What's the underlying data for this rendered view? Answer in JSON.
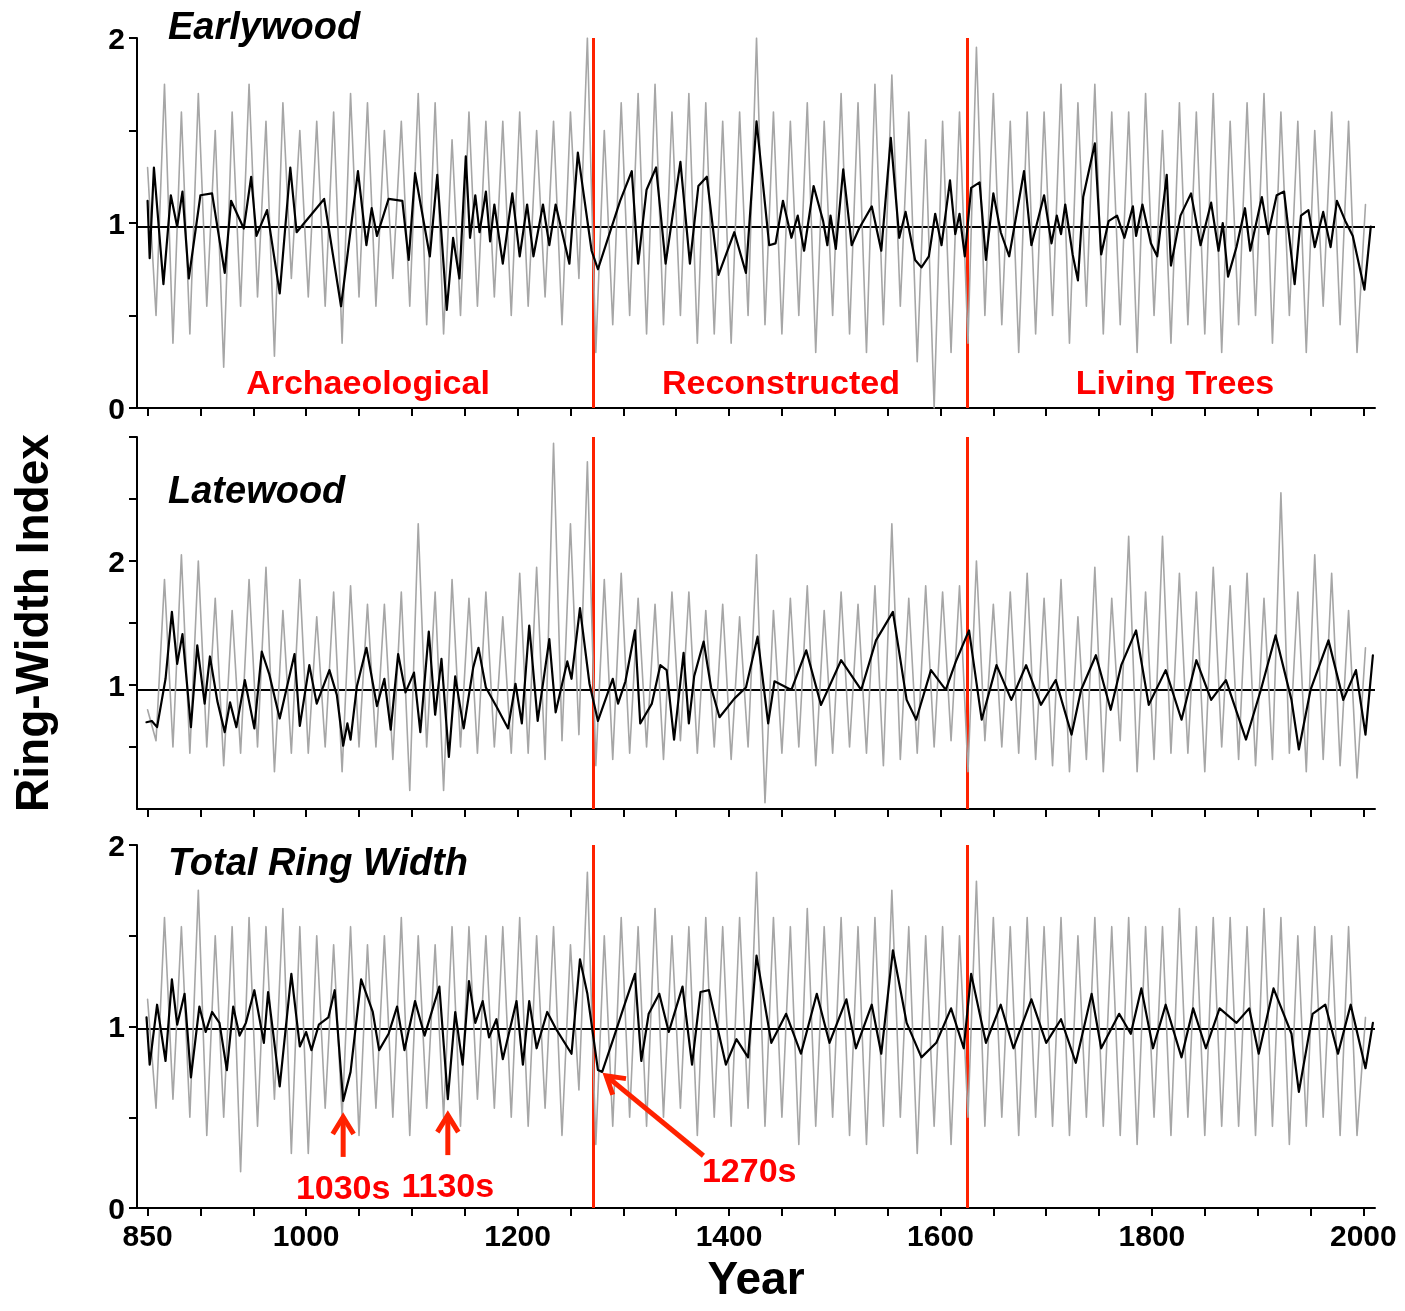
{
  "chart_data": [
    {
      "type": "line",
      "title": "Earlywood",
      "x": [
        850,
        858,
        866,
        874,
        882,
        890,
        898,
        906,
        914,
        922,
        930,
        938,
        946,
        954,
        962,
        970,
        978,
        986,
        994,
        1002,
        1010,
        1018,
        1026,
        1034,
        1042,
        1050,
        1058,
        1066,
        1074,
        1082,
        1090,
        1098,
        1106,
        1114,
        1122,
        1130,
        1138,
        1146,
        1154,
        1162,
        1170,
        1178,
        1186,
        1194,
        1202,
        1210,
        1218,
        1226,
        1234,
        1242,
        1250,
        1258,
        1266,
        1274,
        1282,
        1290,
        1298,
        1306,
        1314,
        1322,
        1330,
        1338,
        1346,
        1354,
        1362,
        1370,
        1378,
        1386,
        1394,
        1402,
        1410,
        1418,
        1426,
        1434,
        1442,
        1450,
        1458,
        1466,
        1474,
        1482,
        1490,
        1498,
        1506,
        1514,
        1522,
        1530,
        1538,
        1546,
        1554,
        1562,
        1570,
        1578,
        1586,
        1594,
        1602,
        1610,
        1618,
        1626,
        1634,
        1642,
        1650,
        1658,
        1666,
        1674,
        1682,
        1690,
        1698,
        1706,
        1714,
        1722,
        1730,
        1738,
        1746,
        1754,
        1762,
        1770,
        1778,
        1786,
        1794,
        1802,
        1810,
        1818,
        1826,
        1834,
        1842,
        1850,
        1858,
        1866,
        1874,
        1882,
        1890,
        1898,
        1906,
        1914,
        1922,
        1930,
        1938,
        1946,
        1954,
        1962,
        1970,
        1978,
        1986,
        1994,
        2002
      ],
      "series": [
        {
          "color": "#a6a6a6",
          "values": [
            1.3,
            0.5,
            1.75,
            0.35,
            1.6,
            0.4,
            1.7,
            0.55,
            1.5,
            0.22,
            1.6,
            0.55,
            1.75,
            0.6,
            1.55,
            0.28,
            1.65,
            0.7,
            1.5,
            0.6,
            1.55,
            0.55,
            1.6,
            0.35,
            1.7,
            0.6,
            1.65,
            0.55,
            1.5,
            0.7,
            1.55,
            0.55,
            1.7,
            0.45,
            1.65,
            0.4,
            1.45,
            0.5,
            1.6,
            0.55,
            1.55,
            0.6,
            1.55,
            0.5,
            1.6,
            0.55,
            1.5,
            0.6,
            1.55,
            0.45,
            1.6,
            0.7,
            2.0,
            0.3,
            1.5,
            0.45,
            1.65,
            0.5,
            1.7,
            0.4,
            1.75,
            0.45,
            1.6,
            0.5,
            1.7,
            0.35,
            1.65,
            0.4,
            1.55,
            0.35,
            1.6,
            0.5,
            2.0,
            0.45,
            1.6,
            0.4,
            1.55,
            0.5,
            1.65,
            0.3,
            1.55,
            0.5,
            1.7,
            0.4,
            1.65,
            0.3,
            1.75,
            0.45,
            1.8,
            0.55,
            1.6,
            0.25,
            1.45,
            0.0,
            1.55,
            0.3,
            1.6,
            0.35,
            1.95,
            0.5,
            1.7,
            0.45,
            1.55,
            0.3,
            1.6,
            0.4,
            1.6,
            0.5,
            1.75,
            0.35,
            1.65,
            0.55,
            1.75,
            0.4,
            1.6,
            0.45,
            1.6,
            0.3,
            1.7,
            0.5,
            1.5,
            0.35,
            1.65,
            0.45,
            1.6,
            0.4,
            1.7,
            0.3,
            1.55,
            0.45,
            1.65,
            0.5,
            1.7,
            0.35,
            1.6,
            0.5,
            1.55,
            0.3,
            1.5,
            0.55,
            1.6,
            0.45,
            1.55,
            0.3,
            1.1
          ]
        },
        {
          "color": "#000000",
          "x": [
            850,
            852,
            856,
            865,
            872,
            878,
            883,
            889,
            900,
            911,
            923,
            929,
            941,
            948,
            953,
            963,
            975,
            985,
            991,
            1017,
            1033,
            1049,
            1057,
            1062,
            1067,
            1078,
            1091,
            1097,
            1103,
            1117,
            1124,
            1133,
            1139,
            1145,
            1151,
            1155,
            1160,
            1164,
            1170,
            1174,
            1178,
            1186,
            1195,
            1202,
            1209,
            1215,
            1224,
            1230,
            1236,
            1249,
            1257,
            1270,
            1276,
            1297,
            1308,
            1314,
            1322,
            1331,
            1340,
            1354,
            1363,
            1371,
            1379,
            1390,
            1405,
            1416,
            1426,
            1438,
            1444,
            1451,
            1459,
            1465,
            1471,
            1480,
            1489,
            1493,
            1496,
            1501,
            1508,
            1516,
            1523,
            1535,
            1544,
            1553,
            1561,
            1567,
            1576,
            1582,
            1589,
            1595,
            1601,
            1609,
            1614,
            1618,
            1623,
            1629,
            1637,
            1643,
            1650,
            1657,
            1665,
            1679,
            1686,
            1698,
            1705,
            1710,
            1714,
            1718,
            1725,
            1730,
            1735,
            1746,
            1752,
            1759,
            1767,
            1774,
            1782,
            1785,
            1791,
            1799,
            1805,
            1814,
            1818,
            1827,
            1837,
            1846,
            1856,
            1863,
            1867,
            1872,
            1880,
            1888,
            1893,
            1904,
            1910,
            1918,
            1925,
            1935,
            1941,
            1948,
            1954,
            1962,
            1969,
            1975,
            1983,
            1990,
            2001,
            2007
          ],
          "values": [
            1.12,
            0.81,
            1.3,
            0.67,
            1.15,
            0.98,
            1.17,
            0.7,
            1.15,
            1.16,
            0.73,
            1.12,
            0.97,
            1.25,
            0.93,
            1.07,
            0.62,
            1.3,
            0.95,
            1.13,
            0.55,
            1.28,
            0.88,
            1.08,
            0.93,
            1.13,
            1.12,
            0.8,
            1.27,
            0.82,
            1.26,
            0.53,
            0.92,
            0.7,
            1.36,
            0.92,
            1.15,
            0.95,
            1.17,
            0.9,
            1.1,
            0.78,
            1.16,
            0.82,
            1.1,
            0.82,
            1.1,
            0.88,
            1.1,
            0.78,
            1.38,
            0.85,
            0.75,
            1.12,
            1.28,
            0.78,
            1.18,
            1.3,
            0.78,
            1.33,
            0.78,
            1.2,
            1.25,
            0.72,
            0.95,
            0.73,
            1.55,
            0.88,
            0.89,
            1.12,
            0.92,
            1.04,
            0.85,
            1.2,
            1.01,
            0.88,
            1.04,
            0.86,
            1.29,
            0.88,
            0.97,
            1.09,
            0.85,
            1.46,
            0.92,
            1.06,
            0.8,
            0.76,
            0.82,
            1.05,
            0.88,
            1.23,
            0.94,
            1.05,
            0.82,
            1.19,
            1.22,
            0.8,
            1.16,
            0.95,
            0.82,
            1.28,
            0.88,
            1.15,
            0.89,
            1.04,
            0.94,
            1.1,
            0.83,
            0.69,
            1.14,
            1.43,
            0.83,
            1.01,
            1.04,
            0.92,
            1.09,
            0.93,
            1.1,
            0.89,
            0.82,
            1.26,
            0.77,
            1.04,
            1.16,
            0.88,
            1.11,
            0.85,
            1.0,
            0.71,
            0.87,
            1.08,
            0.85,
            1.14,
            0.94,
            1.15,
            1.17,
            0.67,
            1.04,
            1.07,
            0.87,
            1.06,
            0.87,
            1.12,
            1.01,
            0.93,
            0.64,
            0.98
          ]
        }
      ],
      "xlim": [
        840,
        2011
      ],
      "xticks": [
        850,
        {
          "value": 900,
          "label": null
        },
        {
          "value": 950,
          "label": null
        },
        1000,
        {
          "value": 1050,
          "label": null
        },
        {
          "value": 1100,
          "label": null
        },
        {
          "value": 1150,
          "label": null
        },
        1200,
        {
          "value": 1250,
          "label": null
        },
        {
          "value": 1300,
          "label": null
        },
        {
          "value": 1350,
          "label": null
        },
        1400,
        {
          "value": 1450,
          "label": null
        },
        {
          "value": 1500,
          "label": null
        },
        {
          "value": 1550,
          "label": null
        },
        1600,
        {
          "value": 1650,
          "label": null
        },
        {
          "value": 1700,
          "label": null
        },
        {
          "value": 1750,
          "label": null
        },
        1800,
        {
          "value": 1850,
          "label": null
        },
        {
          "value": 1900,
          "label": null
        },
        {
          "value": 1950,
          "label": null
        },
        2000
      ],
      "ylim": [
        0,
        2
      ],
      "yticks": [
        0,
        {
          "value": 0.5,
          "label": null
        },
        1,
        {
          "value": 1.5,
          "label": null
        },
        2
      ],
      "tick_labels": "y",
      "ref_lines": [
        {
          "axis": "y",
          "value": 0.98,
          "color": "#000000"
        },
        {
          "axis": "x",
          "value": 1272,
          "color": "#ff2200"
        },
        {
          "axis": "x",
          "value": 1625,
          "color": "#ff2200"
        }
      ],
      "annotations": [
        "Archaeological",
        "Reconstructed",
        "Living Trees"
      ]
    },
    {
      "type": "line",
      "title": "Latewood",
      "ylabel": "Ring-Width Index",
      "x": [
        850,
        858,
        866,
        874,
        882,
        890,
        898,
        906,
        914,
        922,
        930,
        938,
        946,
        954,
        962,
        970,
        978,
        986,
        994,
        1002,
        1010,
        1018,
        1026,
        1034,
        1042,
        1050,
        1058,
        1066,
        1074,
        1082,
        1090,
        1098,
        1106,
        1114,
        1122,
        1130,
        1138,
        1146,
        1154,
        1162,
        1170,
        1178,
        1186,
        1194,
        1202,
        1210,
        1218,
        1226,
        1234,
        1242,
        1250,
        1258,
        1266,
        1274,
        1282,
        1290,
        1298,
        1306,
        1314,
        1322,
        1330,
        1338,
        1346,
        1354,
        1362,
        1370,
        1378,
        1386,
        1394,
        1402,
        1410,
        1418,
        1426,
        1434,
        1442,
        1450,
        1458,
        1466,
        1474,
        1482,
        1490,
        1498,
        1506,
        1514,
        1522,
        1530,
        1538,
        1546,
        1554,
        1562,
        1570,
        1578,
        1586,
        1594,
        1602,
        1610,
        1618,
        1626,
        1634,
        1642,
        1650,
        1658,
        1666,
        1674,
        1682,
        1690,
        1698,
        1706,
        1714,
        1722,
        1730,
        1738,
        1746,
        1754,
        1762,
        1770,
        1778,
        1786,
        1794,
        1802,
        1810,
        1818,
        1826,
        1834,
        1842,
        1850,
        1858,
        1866,
        1874,
        1882,
        1890,
        1898,
        1906,
        1914,
        1922,
        1930,
        1938,
        1946,
        1954,
        1962,
        1970,
        1978,
        1986,
        1994,
        2002
      ],
      "series": [
        {
          "color": "#a6a6a6",
          "values": [
            0.8,
            0.55,
            1.85,
            0.5,
            2.05,
            0.45,
            2.0,
            0.5,
            1.7,
            0.35,
            1.6,
            0.45,
            1.85,
            0.5,
            1.95,
            0.3,
            1.6,
            0.45,
            1.85,
            0.45,
            1.55,
            0.5,
            1.75,
            0.3,
            1.8,
            0.5,
            1.65,
            0.5,
            1.65,
            0.4,
            1.75,
            0.15,
            2.3,
            0.5,
            1.75,
            0.15,
            1.85,
            0.5,
            1.7,
            0.45,
            1.75,
            0.5,
            1.55,
            0.45,
            1.9,
            0.45,
            1.95,
            0.4,
            2.95,
            0.55,
            2.3,
            0.6,
            2.8,
            0.35,
            1.85,
            0.4,
            1.9,
            0.45,
            1.7,
            0.5,
            1.65,
            0.4,
            1.75,
            0.55,
            1.75,
            0.45,
            1.6,
            0.5,
            1.65,
            0.4,
            1.55,
            0.5,
            2.05,
            0.05,
            1.6,
            0.45,
            1.7,
            0.5,
            1.8,
            0.35,
            1.6,
            0.45,
            1.75,
            0.5,
            1.65,
            0.45,
            1.8,
            0.35,
            2.3,
            0.4,
            1.7,
            0.45,
            1.8,
            0.5,
            1.75,
            0.55,
            1.8,
            0.3,
            2.0,
            0.55,
            1.65,
            0.5,
            1.75,
            0.45,
            1.9,
            0.4,
            1.7,
            0.35,
            1.85,
            0.3,
            1.55,
            0.4,
            1.95,
            0.3,
            1.7,
            0.55,
            2.2,
            0.3,
            1.75,
            0.4,
            2.2,
            0.45,
            1.9,
            0.45,
            1.75,
            0.3,
            1.95,
            0.5,
            1.8,
            0.4,
            1.9,
            0.35,
            1.7,
            0.4,
            2.55,
            0.45,
            1.75,
            0.3,
            2.05,
            0.4,
            1.9,
            0.35,
            1.6,
            0.25,
            1.3
          ]
        },
        {
          "color": "#000000",
          "x": [
            849,
            854,
            859,
            867,
            873,
            878,
            883,
            891,
            897,
            904,
            909,
            916,
            923,
            928,
            934,
            942,
            951,
            958,
            965,
            975,
            989,
            994,
            1003,
            1010,
            1022,
            1029,
            1035,
            1039,
            1042,
            1048,
            1057,
            1067,
            1074,
            1080,
            1087,
            1094,
            1102,
            1108,
            1116,
            1122,
            1128,
            1135,
            1141,
            1149,
            1158,
            1163,
            1170,
            1181,
            1191,
            1198,
            1204,
            1211,
            1219,
            1230,
            1236,
            1247,
            1251,
            1259,
            1268,
            1276,
            1290,
            1295,
            1302,
            1311,
            1316,
            1327,
            1335,
            1341,
            1348,
            1357,
            1362,
            1367,
            1376,
            1383,
            1391,
            1405,
            1416,
            1427,
            1437,
            1443,
            1459,
            1473,
            1487,
            1506,
            1525,
            1539,
            1555,
            1568,
            1577,
            1591,
            1605,
            1615,
            1627,
            1639,
            1653,
            1667,
            1681,
            1695,
            1709,
            1724,
            1733,
            1747,
            1761,
            1771,
            1785,
            1797,
            1813,
            1828,
            1842,
            1856,
            1870,
            1889,
            1903,
            1917,
            1932,
            1939,
            1950,
            1967,
            1981,
            1993,
            2002,
            2009
          ],
          "values": [
            0.7,
            0.71,
            0.66,
            1.05,
            1.59,
            1.17,
            1.41,
            0.66,
            1.32,
            0.85,
            1.23,
            0.87,
            0.62,
            0.86,
            0.66,
            1.04,
            0.65,
            1.27,
            1.09,
            0.73,
            1.25,
            0.67,
            1.16,
            0.85,
            1.12,
            0.92,
            0.51,
            0.69,
            0.56,
            0.99,
            1.3,
            0.83,
            1.05,
            0.64,
            1.25,
            0.94,
            1.1,
            0.62,
            1.43,
            0.76,
            1.21,
            0.42,
            1.07,
            0.65,
            1.14,
            1.3,
            0.98,
            0.81,
            0.65,
            1.01,
            0.69,
            1.48,
            0.71,
            1.37,
            0.78,
            1.19,
            1.05,
            1.62,
            1.01,
            0.71,
            1.05,
            0.85,
            1.03,
            1.44,
            0.69,
            0.85,
            1.16,
            1.12,
            0.56,
            1.26,
            0.69,
            1.07,
            1.35,
            0.98,
            0.74,
            0.89,
            0.98,
            1.39,
            0.69,
            1.03,
            0.96,
            1.28,
            0.84,
            1.2,
            0.96,
            1.36,
            1.59,
            0.88,
            0.72,
            1.12,
            0.96,
            1.2,
            1.44,
            0.72,
            1.16,
            0.88,
            1.16,
            0.84,
            1.04,
            0.6,
            0.96,
            1.24,
            0.8,
            1.16,
            1.44,
            0.84,
            1.12,
            0.72,
            1.2,
            0.88,
            1.04,
            0.56,
            0.96,
            1.4,
            0.88,
            0.48,
            0.96,
            1.36,
            0.88,
            1.12,
            0.6,
            1.24
          ]
        }
      ],
      "xlim": [
        840,
        2011
      ],
      "xticks": [
        850,
        {
          "value": 900,
          "label": null
        },
        {
          "value": 950,
          "label": null
        },
        1000,
        {
          "value": 1050,
          "label": null
        },
        {
          "value": 1100,
          "label": null
        },
        {
          "value": 1150,
          "label": null
        },
        1200,
        {
          "value": 1250,
          "label": null
        },
        {
          "value": 1300,
          "label": null
        },
        {
          "value": 1350,
          "label": null
        },
        1400,
        {
          "value": 1450,
          "label": null
        },
        {
          "value": 1500,
          "label": null
        },
        {
          "value": 1550,
          "label": null
        },
        1600,
        {
          "value": 1650,
          "label": null
        },
        {
          "value": 1700,
          "label": null
        },
        {
          "value": 1750,
          "label": null
        },
        1800,
        {
          "value": 1850,
          "label": null
        },
        {
          "value": 1900,
          "label": null
        },
        {
          "value": 1950,
          "label": null
        },
        2000
      ],
      "ylim": [
        0,
        3
      ],
      "yticks": [
        {
          "value": 0.5,
          "label": null
        },
        1,
        {
          "value": 1.5,
          "label": null
        },
        2,
        {
          "value": 2.5,
          "label": null
        },
        {
          "value": 3,
          "label": null
        }
      ],
      "tick_labels": "y",
      "ref_lines": [
        {
          "axis": "y",
          "value": 0.96,
          "color": "#000000"
        },
        {
          "axis": "x",
          "value": 1272,
          "color": "#ff2200"
        },
        {
          "axis": "x",
          "value": 1625,
          "color": "#ff2200"
        }
      ]
    },
    {
      "type": "line",
      "title": "Total Ring Width",
      "xlabel": "Year",
      "x": [
        850,
        858,
        866,
        874,
        882,
        890,
        898,
        906,
        914,
        922,
        930,
        938,
        946,
        954,
        962,
        970,
        978,
        986,
        994,
        1002,
        1010,
        1018,
        1026,
        1034,
        1042,
        1050,
        1058,
        1066,
        1074,
        1082,
        1090,
        1098,
        1106,
        1114,
        1122,
        1130,
        1138,
        1146,
        1154,
        1162,
        1170,
        1178,
        1186,
        1194,
        1202,
        1210,
        1218,
        1226,
        1234,
        1242,
        1250,
        1258,
        1266,
        1274,
        1282,
        1290,
        1298,
        1306,
        1314,
        1322,
        1330,
        1338,
        1346,
        1354,
        1362,
        1370,
        1378,
        1386,
        1394,
        1402,
        1410,
        1418,
        1426,
        1434,
        1442,
        1450,
        1458,
        1466,
        1474,
        1482,
        1490,
        1498,
        1506,
        1514,
        1522,
        1530,
        1538,
        1546,
        1554,
        1562,
        1570,
        1578,
        1586,
        1594,
        1602,
        1610,
        1618,
        1626,
        1634,
        1642,
        1650,
        1658,
        1666,
        1674,
        1682,
        1690,
        1698,
        1706,
        1714,
        1722,
        1730,
        1738,
        1746,
        1754,
        1762,
        1770,
        1778,
        1786,
        1794,
        1802,
        1810,
        1818,
        1826,
        1834,
        1842,
        1850,
        1858,
        1866,
        1874,
        1882,
        1890,
        1898,
        1906,
        1914,
        1922,
        1930,
        1938,
        1946,
        1954,
        1962,
        1970,
        1978,
        1986,
        1994,
        2002
      ],
      "series": [
        {
          "color": "#a6a6a6",
          "values": [
            1.15,
            0.55,
            1.6,
            0.6,
            1.55,
            0.5,
            1.75,
            0.4,
            1.5,
            0.5,
            1.55,
            0.2,
            1.6,
            0.45,
            1.55,
            0.6,
            1.65,
            0.3,
            1.55,
            0.3,
            1.5,
            0.55,
            1.45,
            0.5,
            1.55,
            0.4,
            1.45,
            0.55,
            1.5,
            0.5,
            1.6,
            0.4,
            1.5,
            0.55,
            1.45,
            0.5,
            1.55,
            0.45,
            1.55,
            0.6,
            1.5,
            0.55,
            1.55,
            0.5,
            1.6,
            0.45,
            1.5,
            0.55,
            1.55,
            0.4,
            1.45,
            0.65,
            1.85,
            0.35,
            1.5,
            0.45,
            1.6,
            0.5,
            1.55,
            0.45,
            1.65,
            0.5,
            1.5,
            0.55,
            1.55,
            0.4,
            1.6,
            0.5,
            1.55,
            0.45,
            1.6,
            0.55,
            1.85,
            0.45,
            1.6,
            0.5,
            1.55,
            0.35,
            1.65,
            0.45,
            1.55,
            0.5,
            1.6,
            0.4,
            1.55,
            0.35,
            1.6,
            0.45,
            1.75,
            0.5,
            1.55,
            0.3,
            1.5,
            0.45,
            1.55,
            0.35,
            1.5,
            0.5,
            1.8,
            0.45,
            1.6,
            0.5,
            1.55,
            0.4,
            1.6,
            0.5,
            1.55,
            0.45,
            1.6,
            0.4,
            1.5,
            0.5,
            1.6,
            0.45,
            1.55,
            0.4,
            1.6,
            0.35,
            1.55,
            0.5,
            1.55,
            0.4,
            1.65,
            0.5,
            1.55,
            0.4,
            1.6,
            0.45,
            1.6,
            0.45,
            1.55,
            0.4,
            1.65,
            0.45,
            1.6,
            0.35,
            1.5,
            0.45,
            1.55,
            0.5,
            1.5,
            0.4,
            1.55,
            0.4,
            1.05
          ]
        },
        {
          "color": "#000000",
          "x": [
            849,
            852,
            859,
            867,
            873,
            878,
            885,
            891,
            899,
            905,
            911,
            918,
            925,
            931,
            937,
            943,
            951,
            960,
            964,
            975,
            986,
            994,
            1000,
            1005,
            1012,
            1021,
            1027,
            1035,
            1042,
            1052,
            1063,
            1069,
            1078,
            1086,
            1093,
            1103,
            1112,
            1126,
            1134,
            1141,
            1148,
            1154,
            1160,
            1167,
            1173,
            1180,
            1186,
            1199,
            1205,
            1211,
            1218,
            1228,
            1236,
            1251,
            1259,
            1266,
            1276,
            1280,
            1291,
            1300,
            1311,
            1317,
            1324,
            1334,
            1343,
            1356,
            1365,
            1373,
            1381,
            1397,
            1407,
            1418,
            1426,
            1440,
            1454,
            1468,
            1483,
            1495,
            1511,
            1520,
            1535,
            1544,
            1555,
            1568,
            1582,
            1596,
            1610,
            1622,
            1629,
            1643,
            1657,
            1669,
            1686,
            1700,
            1714,
            1728,
            1743,
            1752,
            1769,
            1780,
            1790,
            1801,
            1813,
            1828,
            1839,
            1851,
            1864,
            1880,
            1892,
            1901,
            1915,
            1932,
            1939,
            1952,
            1964,
            1976,
            1988,
            2002,
            2009
          ],
          "values": [
            1.05,
            0.79,
            1.12,
            0.81,
            1.26,
            1.01,
            1.18,
            0.72,
            1.11,
            0.97,
            1.08,
            1.02,
            0.76,
            1.11,
            0.95,
            1.02,
            1.2,
            0.91,
            1.19,
            0.67,
            1.29,
            0.89,
            0.97,
            0.87,
            1.01,
            1.05,
            1.2,
            0.59,
            0.75,
            1.26,
            1.08,
            0.87,
            0.96,
            1.11,
            0.87,
            1.14,
            0.95,
            1.22,
            0.6,
            1.08,
            0.79,
            1.25,
            1.02,
            1.14,
            0.94,
            1.04,
            0.82,
            1.14,
            0.79,
            1.14,
            0.88,
            1.08,
            0.99,
            0.85,
            1.37,
            1.18,
            0.76,
            0.75,
            0.94,
            1.1,
            1.29,
            0.81,
            1.07,
            1.18,
            0.97,
            1.22,
            0.79,
            1.19,
            1.2,
            0.79,
            0.93,
            0.83,
            1.39,
            0.91,
            1.07,
            0.85,
            1.18,
            0.91,
            1.15,
            0.88,
            1.12,
            0.85,
            1.42,
            1.02,
            0.83,
            0.91,
            1.1,
            0.88,
            1.29,
            0.91,
            1.12,
            0.88,
            1.15,
            0.91,
            1.04,
            0.8,
            1.18,
            0.88,
            1.07,
            0.96,
            1.21,
            0.88,
            1.12,
            0.83,
            1.1,
            0.88,
            1.1,
            1.02,
            1.1,
            0.85,
            1.21,
            0.96,
            0.64,
            1.07,
            1.12,
            0.85,
            1.12,
            0.77,
            1.02
          ]
        }
      ],
      "xlim": [
        840,
        2011
      ],
      "xticks": [
        850,
        {
          "value": 900,
          "label": null
        },
        {
          "value": 950,
          "label": null
        },
        1000,
        {
          "value": 1050,
          "label": null
        },
        {
          "value": 1100,
          "label": null
        },
        {
          "value": 1150,
          "label": null
        },
        1200,
        {
          "value": 1250,
          "label": null
        },
        {
          "value": 1300,
          "label": null
        },
        {
          "value": 1350,
          "label": null
        },
        1400,
        {
          "value": 1450,
          "label": null
        },
        {
          "value": 1500,
          "label": null
        },
        {
          "value": 1550,
          "label": null
        },
        1600,
        {
          "value": 1650,
          "label": null
        },
        {
          "value": 1700,
          "label": null
        },
        {
          "value": 1750,
          "label": null
        },
        1800,
        {
          "value": 1850,
          "label": null
        },
        {
          "value": 1900,
          "label": null
        },
        {
          "value": 1950,
          "label": null
        },
        2000
      ],
      "ylim": [
        0,
        2
      ],
      "yticks": [
        0,
        {
          "value": 0.5,
          "label": null
        },
        1,
        {
          "value": 1.5,
          "label": null
        },
        2
      ],
      "ref_lines": [
        {
          "axis": "y",
          "value": 0.99,
          "color": "#000000"
        },
        {
          "axis": "x",
          "value": 1272,
          "color": "#ff2200"
        },
        {
          "axis": "x",
          "value": 1625,
          "color": "#ff2200"
        }
      ],
      "annotations": [
        {
          "text": "1030s",
          "x": 1035,
          "y": 0.59
        },
        {
          "text": "1130s",
          "x": 1134,
          "y": 0.6
        },
        {
          "text": "1270s",
          "x": 1280,
          "y": 0.75
        }
      ]
    }
  ]
}
